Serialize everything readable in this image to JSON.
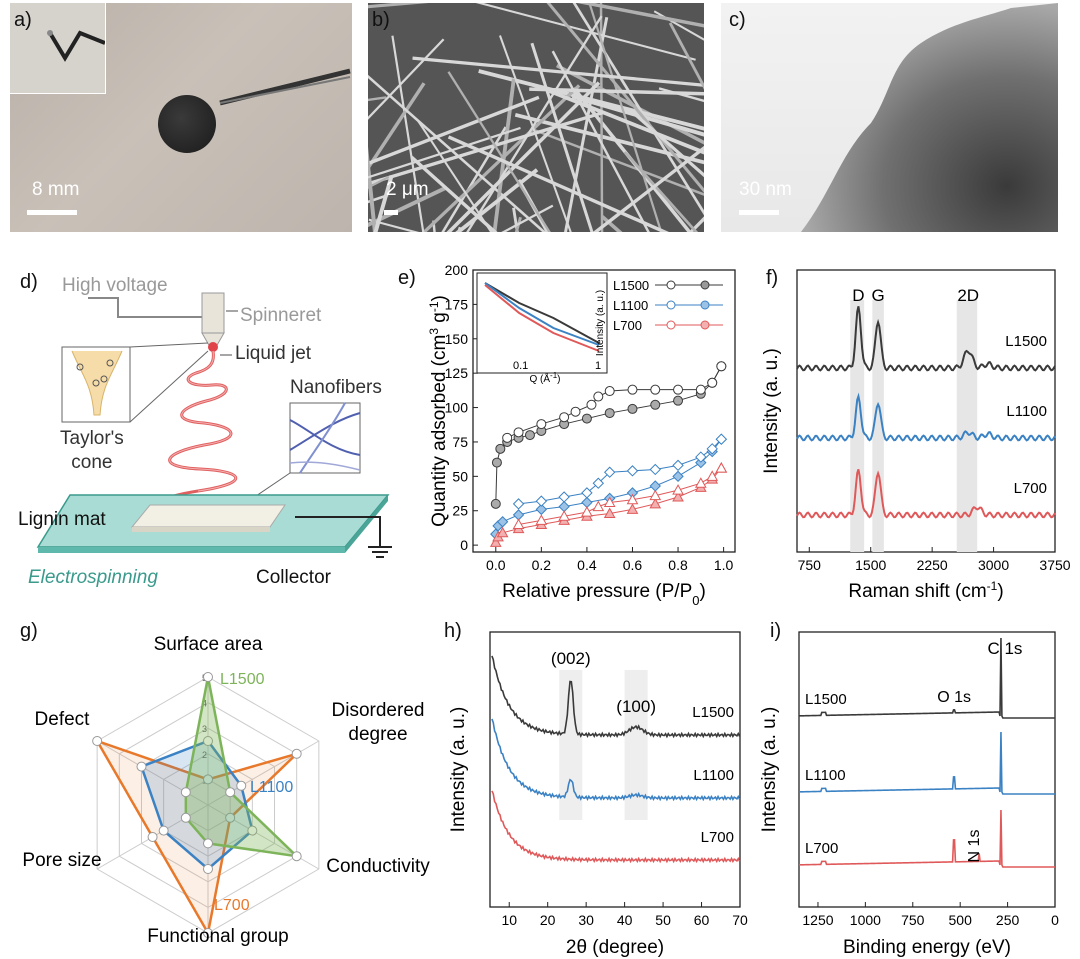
{
  "panels": {
    "a": {
      "label": "a)",
      "scale": "8 mm"
    },
    "b": {
      "label": "b)",
      "scale": "2 μm"
    },
    "c": {
      "label": "c)",
      "scale": "30 nm"
    },
    "d": {
      "label": "d)",
      "high_voltage": "High voltage",
      "spinneret": "Spinneret",
      "liquid_jet": "Liquid jet",
      "taylor_cone": "Taylor's",
      "taylor_cone2": "cone",
      "nanofibers": "Nanofibers",
      "lignin_mat": "Lignin mat",
      "electrospinning": "Electrospinning",
      "collector": "Collector"
    },
    "e": {
      "label": "e)"
    },
    "f": {
      "label": "f)"
    },
    "g": {
      "label": "g)"
    },
    "h": {
      "label": "h)"
    },
    "i": {
      "label": "i)"
    }
  },
  "colors": {
    "L1500": "#3a3a3a",
    "L1100": "#3b82c4",
    "L700": "#e0595a",
    "orange": "#e8782a",
    "green": "#7db45a",
    "teal": "#3a9a8c"
  },
  "chart_data": [
    {
      "id": "e",
      "type": "scatter",
      "xlabel": "Relative pressure (P/P",
      "xlabel_sub": "0",
      "xlabel_end": ")",
      "ylabel": "Quantity adsorbed (cm",
      "ylabel_sup": "3",
      "ylabel_mid": " g",
      "ylabel_sup2": "-1",
      "ylabel_end": ")",
      "xlim": [
        -0.1,
        1.05
      ],
      "ylim": [
        -5,
        200
      ],
      "xticks": [
        "0.0",
        "0.2",
        "0.4",
        "0.6",
        "0.8",
        "1.0"
      ],
      "xtick_values": [
        0,
        0.2,
        0.4,
        0.6,
        0.8,
        1.0
      ],
      "yticks": [
        "0",
        "25",
        "50",
        "75",
        "100",
        "125",
        "150",
        "175",
        "200"
      ],
      "ytick_values": [
        0,
        25,
        50,
        75,
        100,
        125,
        150,
        175,
        200
      ],
      "legend": [
        "L1500",
        "L1100",
        "L700"
      ],
      "series": [
        {
          "name": "L1500",
          "adsorption": [
            [
              0,
              30
            ],
            [
              0.005,
              60
            ],
            [
              0.02,
              70
            ],
            [
              0.05,
              75
            ],
            [
              0.1,
              78
            ],
            [
              0.15,
              80
            ],
            [
              0.2,
              83
            ],
            [
              0.3,
              88
            ],
            [
              0.4,
              92
            ],
            [
              0.5,
              96
            ],
            [
              0.6,
              99
            ],
            [
              0.7,
              102
            ],
            [
              0.8,
              105
            ],
            [
              0.9,
              110
            ],
            [
              0.95,
              118
            ],
            [
              0.99,
              130
            ]
          ],
          "desorption": [
            [
              0.99,
              130
            ],
            [
              0.95,
              118
            ],
            [
              0.9,
              113
            ],
            [
              0.8,
              113
            ],
            [
              0.7,
              113
            ],
            [
              0.6,
              113
            ],
            [
              0.5,
              112
            ],
            [
              0.45,
              108
            ],
            [
              0.42,
              102
            ],
            [
              0.35,
              97
            ],
            [
              0.3,
              93
            ],
            [
              0.2,
              88
            ],
            [
              0.1,
              82
            ],
            [
              0.05,
              78
            ]
          ]
        },
        {
          "name": "L1100",
          "adsorption": [
            [
              0,
              8
            ],
            [
              0.01,
              14
            ],
            [
              0.03,
              17
            ],
            [
              0.1,
              22
            ],
            [
              0.2,
              26
            ],
            [
              0.3,
              28
            ],
            [
              0.4,
              31
            ],
            [
              0.5,
              34
            ],
            [
              0.6,
              38
            ],
            [
              0.7,
              43
            ],
            [
              0.8,
              50
            ],
            [
              0.9,
              60
            ],
            [
              0.95,
              68
            ],
            [
              0.99,
              77
            ]
          ],
          "desorption": [
            [
              0.99,
              77
            ],
            [
              0.95,
              70
            ],
            [
              0.9,
              64
            ],
            [
              0.8,
              58
            ],
            [
              0.7,
              55
            ],
            [
              0.6,
              54
            ],
            [
              0.5,
              53
            ],
            [
              0.45,
              45
            ],
            [
              0.4,
              38
            ],
            [
              0.3,
              35
            ],
            [
              0.2,
              32
            ],
            [
              0.1,
              30
            ]
          ]
        },
        {
          "name": "L700",
          "adsorption": [
            [
              0,
              2
            ],
            [
              0.01,
              6
            ],
            [
              0.03,
              9
            ],
            [
              0.1,
              12
            ],
            [
              0.2,
              15
            ],
            [
              0.3,
              18
            ],
            [
              0.4,
              21
            ],
            [
              0.5,
              23
            ],
            [
              0.6,
              26
            ],
            [
              0.7,
              30
            ],
            [
              0.8,
              35
            ],
            [
              0.9,
              42
            ],
            [
              0.95,
              48
            ],
            [
              0.99,
              56
            ]
          ],
          "desorption": [
            [
              0.99,
              56
            ],
            [
              0.95,
              50
            ],
            [
              0.9,
              45
            ],
            [
              0.8,
              40
            ],
            [
              0.7,
              36
            ],
            [
              0.6,
              33
            ],
            [
              0.5,
              31
            ],
            [
              0.45,
              28
            ],
            [
              0.4,
              24
            ],
            [
              0.3,
              21
            ],
            [
              0.2,
              18
            ],
            [
              0.1,
              15
            ]
          ]
        }
      ],
      "inset": {
        "type": "line",
        "xlabel": "Q (Å",
        "xlabel_sup": "-1",
        "xlabel_end": ")",
        "ylabel": "Intensity (a. u.)",
        "tick_labels": [
          "0.1",
          "1"
        ],
        "series": [
          {
            "name": "L1500",
            "values": [
              [
                0,
                0.9
              ],
              [
                0.3,
                0.7
              ],
              [
                0.6,
                0.55
              ],
              [
                1,
                0.3
              ]
            ]
          },
          {
            "name": "L1100",
            "values": [
              [
                0,
                0.9
              ],
              [
                0.3,
                0.65
              ],
              [
                0.6,
                0.45
              ],
              [
                1,
                0.28
              ]
            ]
          },
          {
            "name": "L700",
            "values": [
              [
                0,
                0.88
              ],
              [
                0.3,
                0.6
              ],
              [
                0.6,
                0.4
              ],
              [
                1,
                0.22
              ]
            ]
          }
        ]
      }
    },
    {
      "id": "f",
      "type": "line",
      "xlabel": "Raman shift (cm",
      "xlabel_sup": "-1",
      "xlabel_end": ")",
      "ylabel": "Intensity (a. u.)",
      "xlim": [
        600,
        3750
      ],
      "xticks": [
        "750",
        "1500",
        "2250",
        "3000",
        "3750"
      ],
      "xtick_values": [
        750,
        1500,
        2250,
        3000,
        3750
      ],
      "peak_labels": [
        "D",
        "G",
        "2D"
      ],
      "peak_positions": [
        1350,
        1590,
        2690
      ],
      "shaded_bands": [
        [
          1250,
          1420
        ],
        [
          1520,
          1660
        ],
        [
          2550,
          2800
        ]
      ],
      "series": [
        {
          "name": "L1500",
          "offset": 2,
          "peaks": [
            [
              1350,
              0.75
            ],
            [
              1590,
              0.6
            ],
            [
              2690,
              0.22
            ],
            [
              2930,
              0.05
            ]
          ]
        },
        {
          "name": "L1100",
          "offset": 1,
          "peaks": [
            [
              1350,
              0.5
            ],
            [
              1590,
              0.45
            ],
            [
              2690,
              0.07
            ],
            [
              2930,
              0.05
            ]
          ]
        },
        {
          "name": "L700",
          "offset": 0,
          "peaks": [
            [
              1350,
              0.55
            ],
            [
              1590,
              0.55
            ],
            [
              2800,
              0.1
            ]
          ]
        }
      ]
    },
    {
      "id": "g",
      "type": "radar",
      "axes": [
        "Surface area",
        "Disordered degree",
        "Conductivity",
        "Functional group",
        "Pore size",
        "Defect"
      ],
      "axis_label_lines": [
        [
          "Surface area"
        ],
        [
          "Disordered",
          "degree"
        ],
        [
          "Conductivity"
        ],
        [
          "Functional group"
        ],
        [
          "Pore size"
        ],
        [
          "Defect"
        ]
      ],
      "rmax": 5,
      "tick_labels": [
        "1",
        "2",
        "3",
        "4",
        "5"
      ],
      "series": [
        {
          "name": "L1500",
          "values": [
            5,
            1,
            4,
            1.5,
            1,
            1
          ]
        },
        {
          "name": "L1100",
          "values": [
            2.5,
            1.5,
            2,
            2.5,
            2,
            3
          ]
        },
        {
          "name": "L700",
          "values": [
            1,
            4,
            1,
            5,
            2.5,
            5
          ]
        }
      ]
    },
    {
      "id": "h",
      "type": "line",
      "xlabel": "2θ (degree)",
      "ylabel": "Intensity (a. u.)",
      "xlim": [
        5,
        70
      ],
      "xticks": [
        "10",
        "20",
        "30",
        "40",
        "50",
        "60",
        "70"
      ],
      "xtick_values": [
        10,
        20,
        30,
        40,
        50,
        60,
        70
      ],
      "peak_labels": [
        "(002)",
        "(100)"
      ],
      "peak_positions": [
        26,
        43
      ],
      "shaded_bands": [
        [
          23,
          29
        ],
        [
          40,
          46
        ]
      ],
      "series": [
        {
          "name": "L1500"
        },
        {
          "name": "L1100"
        },
        {
          "name": "L700"
        }
      ]
    },
    {
      "id": "i",
      "type": "line",
      "xlabel": "Binding energy (eV)",
      "ylabel": "Intensity (a. u.)",
      "xlim": [
        1350,
        0
      ],
      "xticks": [
        "1250",
        "1000",
        "750",
        "500",
        "250",
        "0"
      ],
      "xtick_values": [
        1250,
        1000,
        750,
        500,
        250,
        0
      ],
      "peak_labels": [
        "C 1s",
        "O 1s",
        "N 1s"
      ],
      "peak_positions": [
        285,
        532,
        400
      ],
      "series": [
        {
          "name": "L1500"
        },
        {
          "name": "L1100"
        },
        {
          "name": "L700"
        }
      ]
    }
  ]
}
